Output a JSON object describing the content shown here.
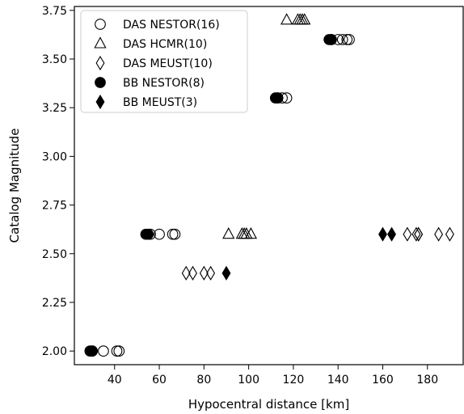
{
  "chart_data": {
    "type": "scatter",
    "title": "",
    "xlabel": "Hypocentral distance [km]",
    "ylabel": "Catalog Magnitude",
    "xlim": [
      22,
      196
    ],
    "ylim": [
      1.93,
      3.77
    ],
    "xticks": [
      40,
      60,
      80,
      100,
      120,
      140,
      160,
      180
    ],
    "yticks": [
      2.0,
      2.25,
      2.5,
      2.75,
      3.0,
      3.25,
      3.5,
      3.75
    ],
    "xtick_labels": [
      "40",
      "60",
      "80",
      "100",
      "120",
      "140",
      "160",
      "180"
    ],
    "ytick_labels": [
      "2.00",
      "2.25",
      "2.50",
      "2.75",
      "3.00",
      "3.25",
      "3.50",
      "3.75"
    ],
    "grid": false,
    "legend_position": "top-left",
    "series": [
      {
        "name": "DAS NESTOR(16)",
        "marker": "circle-open",
        "points": [
          [
            30,
            2.0
          ],
          [
            35,
            2.0
          ],
          [
            41,
            2.0
          ],
          [
            42,
            2.0
          ],
          [
            56,
            2.6
          ],
          [
            60,
            2.6
          ],
          [
            66,
            2.6
          ],
          [
            67,
            2.6
          ],
          [
            115,
            3.3
          ],
          [
            117,
            3.3
          ],
          [
            137,
            3.6
          ],
          [
            140,
            3.6
          ],
          [
            144,
            3.6
          ],
          [
            145,
            3.6
          ],
          [
            142,
            3.6
          ],
          [
            113,
            3.3
          ]
        ]
      },
      {
        "name": "DAS HCMR(10)",
        "marker": "triangle-open",
        "points": [
          [
            91,
            2.6
          ],
          [
            97,
            2.6
          ],
          [
            98,
            2.6
          ],
          [
            99,
            2.6
          ],
          [
            101,
            2.6
          ],
          [
            117,
            3.7
          ],
          [
            122,
            3.7
          ],
          [
            123,
            3.7
          ],
          [
            124,
            3.7
          ],
          [
            125,
            3.7
          ]
        ]
      },
      {
        "name": "DAS MEUST(10)",
        "marker": "diamond-open",
        "points": [
          [
            72,
            2.4
          ],
          [
            75,
            2.4
          ],
          [
            80,
            2.4
          ],
          [
            83,
            2.4
          ],
          [
            171,
            2.6
          ],
          [
            175,
            2.6
          ],
          [
            176,
            2.6
          ],
          [
            185,
            2.6
          ],
          [
            190,
            2.6
          ],
          [
            176,
            2.6
          ]
        ]
      },
      {
        "name": "BB NESTOR(8)",
        "marker": "circle-filled",
        "points": [
          [
            29,
            2.0
          ],
          [
            30,
            2.0
          ],
          [
            54,
            2.6
          ],
          [
            55,
            2.6
          ],
          [
            112,
            3.3
          ],
          [
            113,
            3.3
          ],
          [
            136,
            3.6
          ],
          [
            137,
            3.6
          ]
        ]
      },
      {
        "name": "BB MEUST(3)",
        "marker": "diamond-filled",
        "points": [
          [
            90,
            2.4
          ],
          [
            160,
            2.6
          ],
          [
            164,
            2.6
          ]
        ]
      }
    ]
  }
}
